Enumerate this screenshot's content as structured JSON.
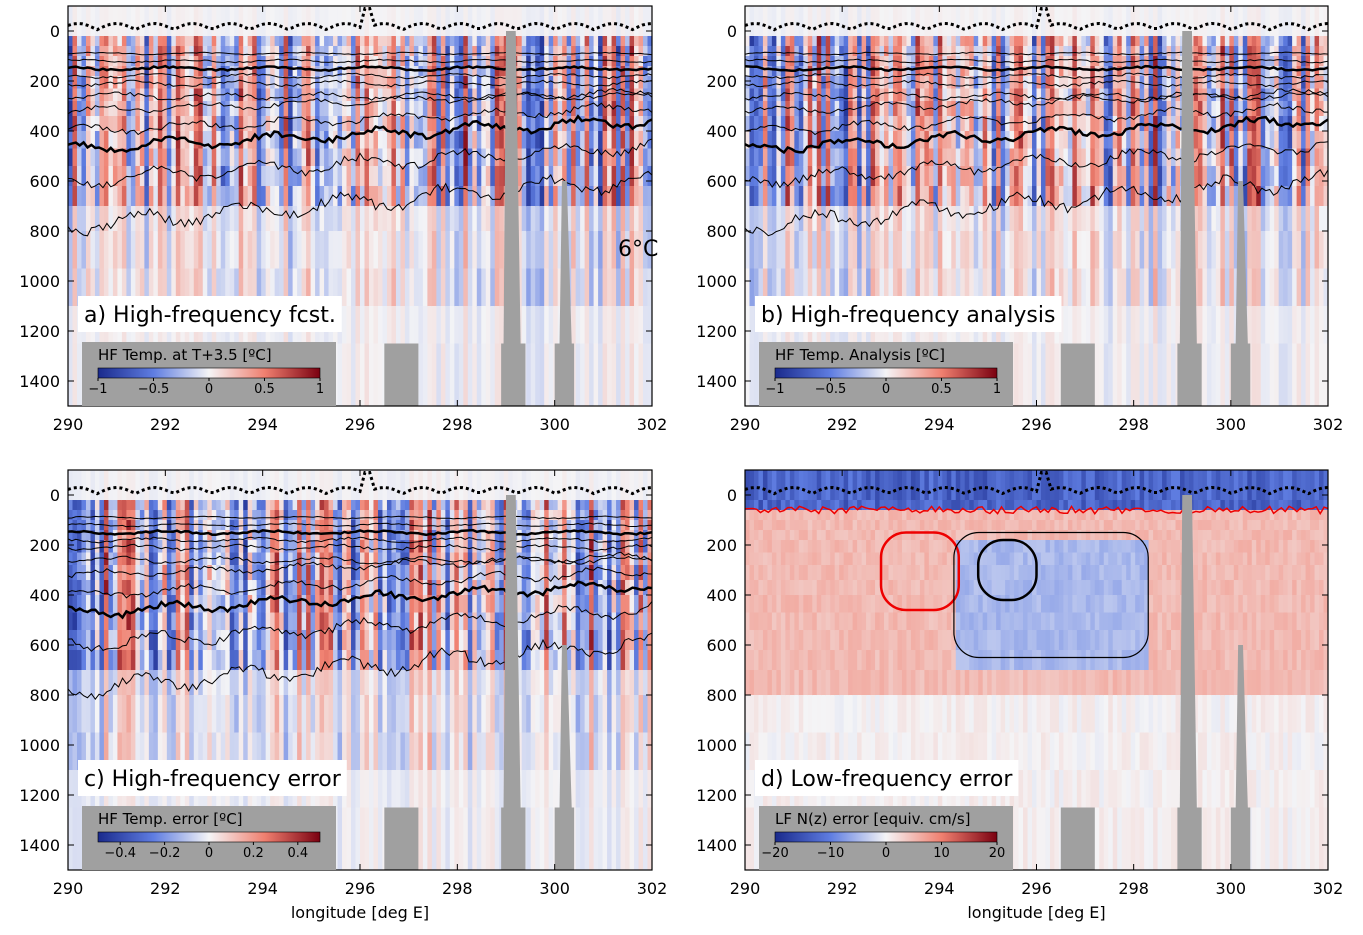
{
  "chart_data": [
    {
      "type": "heatmap",
      "title": "a) High-frequency fcst.",
      "annotation": "6°C",
      "xlim": [
        290,
        302
      ],
      "xticks": [
        290,
        292,
        294,
        296,
        298,
        300,
        302
      ],
      "ylim": [
        -100,
        1500
      ],
      "y_inverted": true,
      "yticks": [
        0,
        200,
        400,
        600,
        800,
        1000,
        1200,
        1400
      ],
      "colorbar": {
        "label": "HF Temp. at T+3.5 [ºC]",
        "lim": [
          -1,
          1
        ],
        "ticks": [
          {
            "value": -1,
            "label": "−1"
          },
          {
            "value": -0.5,
            "label": "−0.5"
          },
          0,
          0.5,
          1
        ]
      }
    },
    {
      "type": "heatmap",
      "title": "b) High-frequency analysis",
      "xlim": [
        290,
        302
      ],
      "xticks": [
        290,
        292,
        294,
        296,
        298,
        300,
        302
      ],
      "ylim": [
        -100,
        1500
      ],
      "y_inverted": true,
      "yticks": [
        0,
        200,
        400,
        600,
        800,
        1000,
        1200,
        1400
      ],
      "colorbar": {
        "label": "HF Temp. Analysis [ºC]",
        "lim": [
          -1,
          1
        ],
        "ticks": [
          {
            "value": -1,
            "label": "−1"
          },
          {
            "value": -0.5,
            "label": "−0.5"
          },
          0,
          0.5,
          1
        ]
      }
    },
    {
      "type": "heatmap",
      "title": "c) High-frequency error",
      "xlabel": "longitude [deg E]",
      "xlim": [
        290,
        302
      ],
      "xticks": [
        290,
        292,
        294,
        296,
        298,
        300,
        302
      ],
      "ylim": [
        -100,
        1500
      ],
      "y_inverted": true,
      "yticks": [
        0,
        200,
        400,
        600,
        800,
        1000,
        1200,
        1400
      ],
      "colorbar": {
        "label": "HF Temp. error [ºC]",
        "lim": [
          -0.5,
          0.5
        ],
        "ticks": [
          {
            "value": -0.4,
            "label": "−0.4"
          },
          {
            "value": -0.2,
            "label": "−0.2"
          },
          0,
          0.2,
          0.4
        ]
      }
    },
    {
      "type": "heatmap",
      "title": "d) Low-frequency error",
      "xlabel": "longitude [deg E]",
      "xlim": [
        290,
        302
      ],
      "xticks": [
        290,
        292,
        294,
        296,
        298,
        300,
        302
      ],
      "ylim": [
        -100,
        1500
      ],
      "y_inverted": true,
      "yticks": [
        0,
        200,
        400,
        600,
        800,
        1000,
        1200,
        1400
      ],
      "colorbar": {
        "label": "LF N(z) error [equiv. cm/s]",
        "lim": [
          -20,
          20
        ],
        "ticks": [
          {
            "value": -20,
            "label": "−20"
          },
          {
            "value": -10,
            "label": "−10"
          },
          0,
          10,
          20
        ]
      }
    }
  ]
}
